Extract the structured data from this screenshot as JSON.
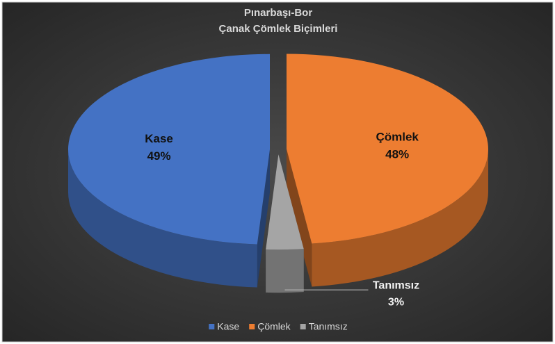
{
  "chart_data": {
    "type": "pie",
    "title": [
      "Pınarbaşı-Bor",
      "Çanak Çömlek Biçimleri"
    ],
    "categories": [
      "Kase",
      "Çömlek",
      "Tanımsız"
    ],
    "values": [
      49,
      48,
      3
    ],
    "value_labels": [
      "49%",
      "48%",
      "3%"
    ],
    "colors": [
      "#4472c4",
      "#ed7d31",
      "#a5a5a5"
    ],
    "legend": "bottom"
  }
}
